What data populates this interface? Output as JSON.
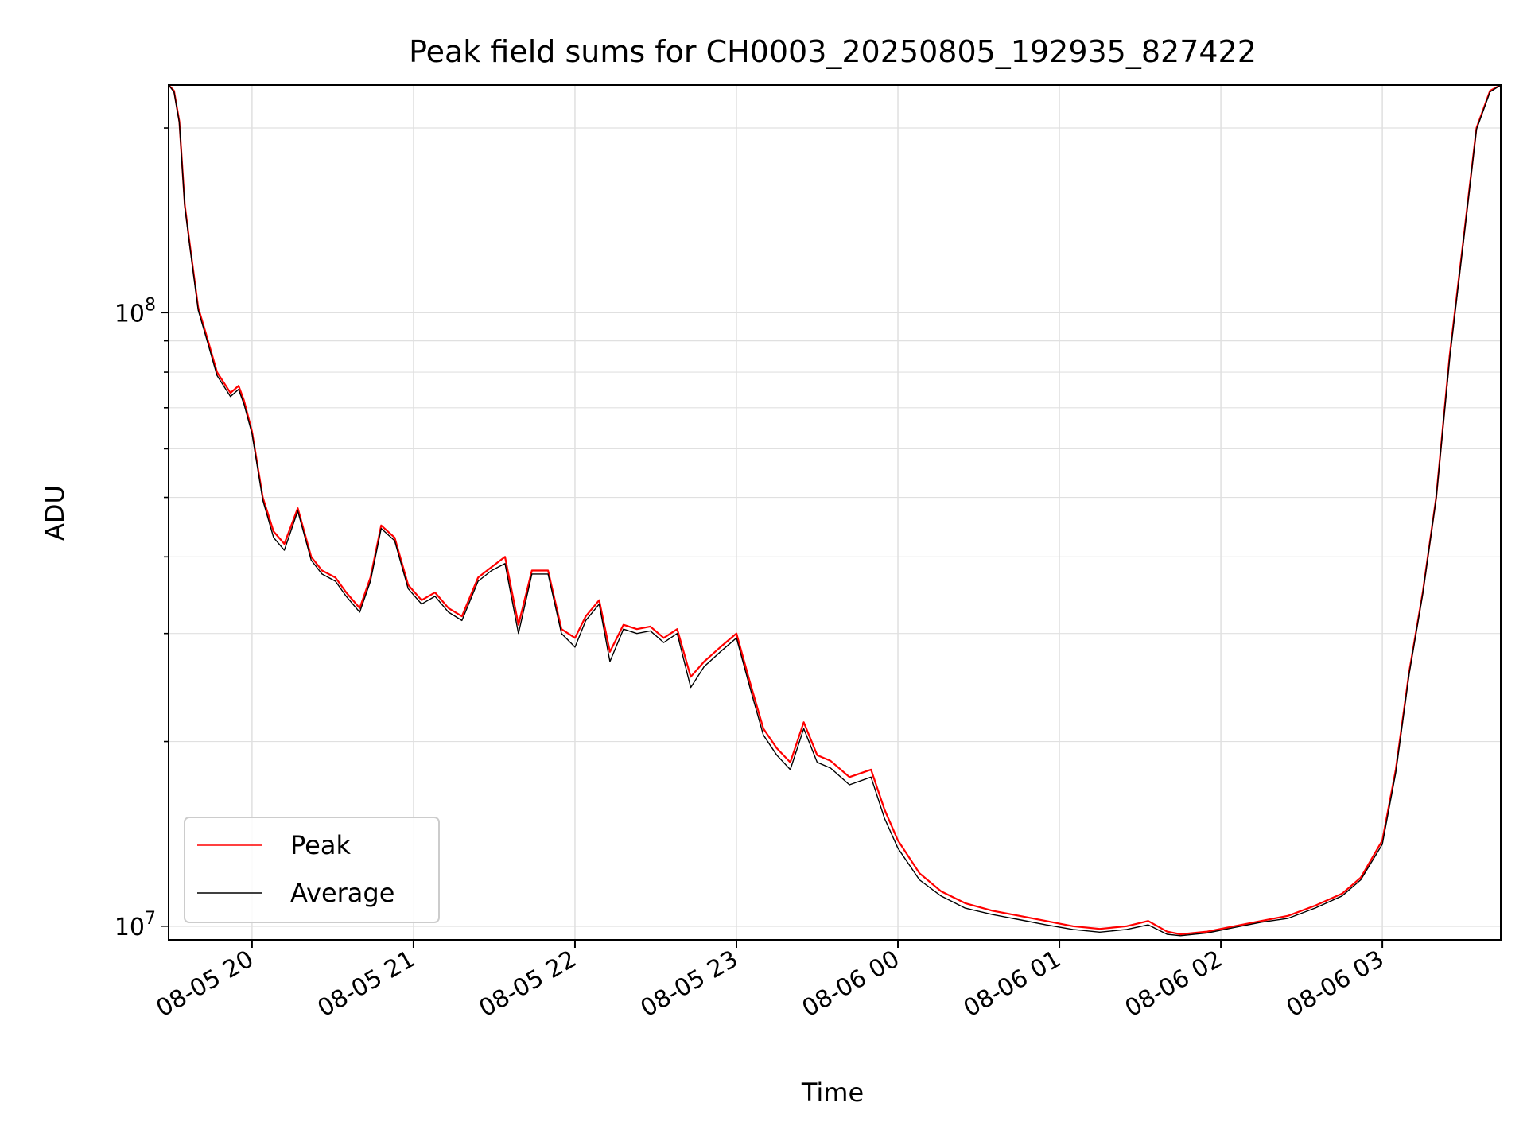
{
  "chart_data": {
    "type": "line",
    "title": "Peak field sums for CH0003_20250805_192935_827422",
    "xlabel": "Time",
    "ylabel": "ADU",
    "y_scale": "log",
    "ylim": [
      9500000,
      235000000
    ],
    "xlim": [
      "2025-08-05 19:29",
      "2025-08-06 03:44"
    ],
    "grid": true,
    "legend_position": "lower-left",
    "x_tick_labels": [
      "08-05 20",
      "08-05 21",
      "08-05 22",
      "08-05 23",
      "08-06 00",
      "08-06 01",
      "08-06 02",
      "08-06 03"
    ],
    "x_ticks": [
      "2025-08-05 20:00",
      "2025-08-05 21:00",
      "2025-08-05 22:00",
      "2025-08-05 23:00",
      "2025-08-06 00:00",
      "2025-08-06 01:00",
      "2025-08-06 02:00",
      "2025-08-06 03:00"
    ],
    "y_tick_labels": [
      {
        "value": 10000000,
        "base": "10",
        "exp": "7"
      },
      {
        "value": 100000000,
        "base": "10",
        "exp": "8"
      }
    ],
    "series": [
      {
        "name": "Peak",
        "color": "#ff0000",
        "x": [
          "2025-08-05 19:29",
          "2025-08-05 19:31",
          "2025-08-05 19:33",
          "2025-08-05 19:35",
          "2025-08-05 19:37",
          "2025-08-05 19:40",
          "2025-08-05 19:43",
          "2025-08-05 19:47",
          "2025-08-05 19:52",
          "2025-08-05 19:55",
          "2025-08-05 19:57",
          "2025-08-05 20:00",
          "2025-08-05 20:04",
          "2025-08-05 20:08",
          "2025-08-05 20:12",
          "2025-08-05 20:17",
          "2025-08-05 20:22",
          "2025-08-05 20:26",
          "2025-08-05 20:31",
          "2025-08-05 20:35",
          "2025-08-05 20:40",
          "2025-08-05 20:44",
          "2025-08-05 20:48",
          "2025-08-05 20:53",
          "2025-08-05 20:58",
          "2025-08-05 21:03",
          "2025-08-05 21:08",
          "2025-08-05 21:13",
          "2025-08-05 21:18",
          "2025-08-05 21:24",
          "2025-08-05 21:29",
          "2025-08-05 21:34",
          "2025-08-05 21:39",
          "2025-08-05 21:44",
          "2025-08-05 21:50",
          "2025-08-05 21:55",
          "2025-08-05 22:00",
          "2025-08-05 22:04",
          "2025-08-05 22:09",
          "2025-08-05 22:13",
          "2025-08-05 22:18",
          "2025-08-05 22:23",
          "2025-08-05 22:28",
          "2025-08-05 22:33",
          "2025-08-05 22:38",
          "2025-08-05 22:43",
          "2025-08-05 22:48",
          "2025-08-05 22:54",
          "2025-08-05 23:00",
          "2025-08-05 23:05",
          "2025-08-05 23:10",
          "2025-08-05 23:15",
          "2025-08-05 23:20",
          "2025-08-05 23:25",
          "2025-08-05 23:30",
          "2025-08-05 23:35",
          "2025-08-05 23:42",
          "2025-08-05 23:50",
          "2025-08-05 23:55",
          "2025-08-06 00:00",
          "2025-08-06 00:08",
          "2025-08-06 00:16",
          "2025-08-06 00:25",
          "2025-08-06 00:35",
          "2025-08-06 00:45",
          "2025-08-06 00:55",
          "2025-08-06 01:05",
          "2025-08-06 01:15",
          "2025-08-06 01:25",
          "2025-08-06 01:33",
          "2025-08-06 01:40",
          "2025-08-06 01:45",
          "2025-08-06 01:55",
          "2025-08-06 02:05",
          "2025-08-06 02:15",
          "2025-08-06 02:25",
          "2025-08-06 02:35",
          "2025-08-06 02:45",
          "2025-08-06 02:52",
          "2025-08-06 03:00",
          "2025-08-06 03:05",
          "2025-08-06 03:10",
          "2025-08-06 03:15",
          "2025-08-06 03:20",
          "2025-08-06 03:25",
          "2025-08-06 03:30",
          "2025-08-06 03:35",
          "2025-08-06 03:40",
          "2025-08-06 03:44"
        ],
        "y": [
          235000000,
          230000000,
          205000000,
          150000000,
          128000000,
          102000000,
          92000000,
          80000000,
          74000000,
          76000000,
          72000000,
          64000000,
          50000000,
          44000000,
          42000000,
          48000000,
          40000000,
          38000000,
          37000000,
          35000000,
          33000000,
          37000000,
          45000000,
          43000000,
          36000000,
          34000000,
          35000000,
          33000000,
          32000000,
          37000000,
          38500000,
          40000000,
          31000000,
          38000000,
          38000000,
          30500000,
          29500000,
          32000000,
          34000000,
          28000000,
          31000000,
          30500000,
          30800000,
          29500000,
          30500000,
          25500000,
          27000000,
          28500000,
          30000000,
          25000000,
          21000000,
          19500000,
          18500000,
          21500000,
          19000000,
          18600000,
          17500000,
          18000000,
          15500000,
          13800000,
          12200000,
          11400000,
          10900000,
          10600000,
          10400000,
          10200000,
          10000000,
          9900000,
          10000000,
          10200000,
          9800000,
          9700000,
          9800000,
          10000000,
          10200000,
          10400000,
          10800000,
          11300000,
          12000000,
          13800000,
          18000000,
          26000000,
          35000000,
          50000000,
          85000000,
          130000000,
          200000000,
          230000000,
          235000000
        ]
      },
      {
        "name": "Average",
        "color": "#000000",
        "x": [
          "2025-08-05 19:29",
          "2025-08-05 19:31",
          "2025-08-05 19:33",
          "2025-08-05 19:35",
          "2025-08-05 19:37",
          "2025-08-05 19:40",
          "2025-08-05 19:43",
          "2025-08-05 19:47",
          "2025-08-05 19:52",
          "2025-08-05 19:55",
          "2025-08-05 19:57",
          "2025-08-05 20:00",
          "2025-08-05 20:04",
          "2025-08-05 20:08",
          "2025-08-05 20:12",
          "2025-08-05 20:17",
          "2025-08-05 20:22",
          "2025-08-05 20:26",
          "2025-08-05 20:31",
          "2025-08-05 20:35",
          "2025-08-05 20:40",
          "2025-08-05 20:44",
          "2025-08-05 20:48",
          "2025-08-05 20:53",
          "2025-08-05 20:58",
          "2025-08-05 21:03",
          "2025-08-05 21:08",
          "2025-08-05 21:13",
          "2025-08-05 21:18",
          "2025-08-05 21:24",
          "2025-08-05 21:29",
          "2025-08-05 21:34",
          "2025-08-05 21:39",
          "2025-08-05 21:44",
          "2025-08-05 21:50",
          "2025-08-05 21:55",
          "2025-08-05 22:00",
          "2025-08-05 22:04",
          "2025-08-05 22:09",
          "2025-08-05 22:13",
          "2025-08-05 22:18",
          "2025-08-05 22:23",
          "2025-08-05 22:28",
          "2025-08-05 22:33",
          "2025-08-05 22:38",
          "2025-08-05 22:43",
          "2025-08-05 22:48",
          "2025-08-05 22:54",
          "2025-08-05 23:00",
          "2025-08-05 23:05",
          "2025-08-05 23:10",
          "2025-08-05 23:15",
          "2025-08-05 23:20",
          "2025-08-05 23:25",
          "2025-08-05 23:30",
          "2025-08-05 23:35",
          "2025-08-05 23:42",
          "2025-08-05 23:50",
          "2025-08-05 23:55",
          "2025-08-06 00:00",
          "2025-08-06 00:08",
          "2025-08-06 00:16",
          "2025-08-06 00:25",
          "2025-08-06 00:35",
          "2025-08-06 00:45",
          "2025-08-06 00:55",
          "2025-08-06 01:05",
          "2025-08-06 01:15",
          "2025-08-06 01:25",
          "2025-08-06 01:33",
          "2025-08-06 01:40",
          "2025-08-06 01:45",
          "2025-08-06 01:55",
          "2025-08-06 02:05",
          "2025-08-06 02:15",
          "2025-08-06 02:25",
          "2025-08-06 02:35",
          "2025-08-06 02:45",
          "2025-08-06 02:52",
          "2025-08-06 03:00",
          "2025-08-06 03:05",
          "2025-08-06 03:10",
          "2025-08-06 03:15",
          "2025-08-06 03:20",
          "2025-08-06 03:25",
          "2025-08-06 03:30",
          "2025-08-06 03:35",
          "2025-08-06 03:40",
          "2025-08-06 03:44"
        ],
        "y": [
          235000000,
          229000000,
          204000000,
          149000000,
          127000000,
          101000000,
          91000000,
          79000000,
          73000000,
          75000000,
          71000000,
          63500000,
          49500000,
          43000000,
          41000000,
          47500000,
          39500000,
          37500000,
          36500000,
          34500000,
          32500000,
          36500000,
          44500000,
          42500000,
          35500000,
          33500000,
          34500000,
          32500000,
          31500000,
          36500000,
          38000000,
          39000000,
          30000000,
          37500000,
          37500000,
          30000000,
          28500000,
          31500000,
          33500000,
          27000000,
          30500000,
          30000000,
          30300000,
          29000000,
          30000000,
          24500000,
          26500000,
          28000000,
          29500000,
          24500000,
          20500000,
          19000000,
          18000000,
          21000000,
          18500000,
          18100000,
          17000000,
          17500000,
          15000000,
          13400000,
          11900000,
          11200000,
          10700000,
          10450000,
          10250000,
          10050000,
          9880000,
          9780000,
          9880000,
          10050000,
          9700000,
          9650000,
          9750000,
          9950000,
          10150000,
          10300000,
          10700000,
          11200000,
          11900000,
          13600000,
          17800000,
          25800000,
          34800000,
          49800000,
          84000000,
          129000000,
          199000000,
          229000000,
          235000000
        ]
      }
    ]
  }
}
